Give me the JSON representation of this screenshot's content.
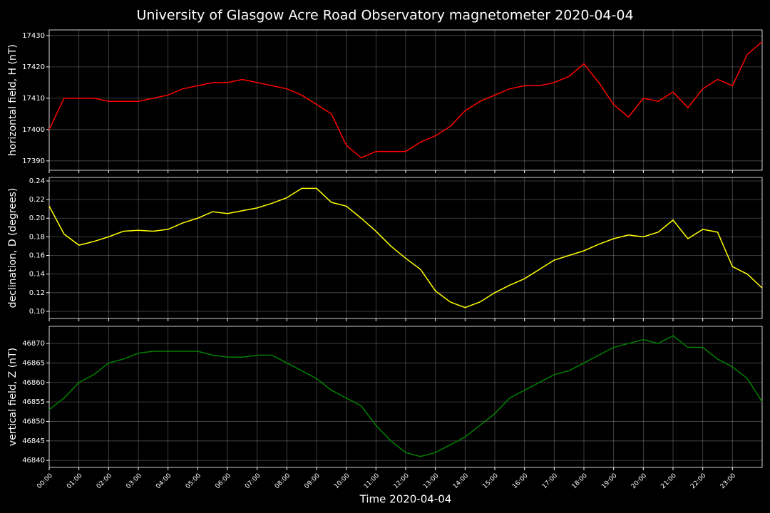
{
  "chart_data": [
    {
      "type": "line",
      "title": "University of Glasgow Acre Road Observatory magnetometer 2020-04-04",
      "ylabel": "horizontal field, H (nT)",
      "color": "#ff0000",
      "grid": true,
      "x": [
        0,
        0.5,
        1,
        1.5,
        2,
        2.5,
        3,
        3.5,
        4,
        4.5,
        5,
        5.5,
        6,
        6.5,
        7,
        7.5,
        8,
        8.5,
        9,
        9.5,
        10,
        10.5,
        11,
        11.5,
        12,
        12.5,
        13,
        13.5,
        14,
        14.5,
        15,
        15.5,
        16,
        16.5,
        17,
        17.5,
        18,
        18.5,
        19,
        19.5,
        20,
        20.5,
        21,
        21.5,
        22,
        22.5,
        23,
        23.5,
        24
      ],
      "values": [
        17400,
        17410,
        17410,
        17410,
        17409,
        17409,
        17409,
        17410,
        17411,
        17413,
        17414,
        17415,
        17415,
        17416,
        17415,
        17414,
        17413,
        17411,
        17408,
        17405,
        17395,
        17391,
        17393,
        17393,
        17393,
        17396,
        17398,
        17401,
        17406,
        17409,
        17411,
        17413,
        17414,
        17414,
        17415,
        17417,
        17421,
        17415,
        17408,
        17404,
        17410,
        17409,
        17412,
        17407,
        17413,
        17416,
        17414,
        17424,
        17428
      ],
      "xlim": [
        0,
        24
      ],
      "ylim": [
        17387,
        17431.8
      ],
      "yticks": [
        17390,
        17400,
        17410,
        17420,
        17430
      ]
    },
    {
      "type": "line",
      "ylabel": "declination, D (degrees)",
      "color": "#ffff00",
      "grid": true,
      "x": [
        0,
        0.5,
        1,
        1.5,
        2,
        2.5,
        3,
        3.5,
        4,
        4.5,
        5,
        5.5,
        6,
        6.5,
        7,
        7.5,
        8,
        8.5,
        9,
        9.5,
        10,
        10.5,
        11,
        11.5,
        12,
        12.5,
        13,
        13.5,
        14,
        14.5,
        15,
        15.5,
        16,
        16.5,
        17,
        17.5,
        18,
        18.5,
        19,
        19.5,
        20,
        20.5,
        21,
        21.5,
        22,
        22.5,
        23,
        23.5,
        24
      ],
      "values": [
        0.213,
        0.183,
        0.171,
        0.175,
        0.18,
        0.186,
        0.187,
        0.186,
        0.188,
        0.195,
        0.2,
        0.207,
        0.205,
        0.208,
        0.211,
        0.216,
        0.222,
        0.232,
        0.232,
        0.217,
        0.213,
        0.2,
        0.186,
        0.17,
        0.157,
        0.145,
        0.122,
        0.11,
        0.104,
        0.11,
        0.12,
        0.128,
        0.135,
        0.145,
        0.155,
        0.16,
        0.165,
        0.172,
        0.178,
        0.182,
        0.18,
        0.185,
        0.198,
        0.178,
        0.188,
        0.185,
        0.148,
        0.14,
        0.125
      ],
      "xlim": [
        0,
        24
      ],
      "ylim": [
        0.0923,
        0.2438
      ],
      "yticks": [
        {
          "value": 0.1,
          "label": "0.10"
        },
        {
          "value": 0.12,
          "label": "0.12"
        },
        {
          "value": 0.14,
          "label": "0.14"
        },
        {
          "value": 0.16,
          "label": "0.16"
        },
        {
          "value": 0.18,
          "label": "0.18"
        },
        {
          "value": 0.2,
          "label": "0.20"
        },
        {
          "value": 0.22,
          "label": "0.22"
        },
        {
          "value": 0.24,
          "label": "0.24"
        }
      ]
    },
    {
      "type": "line",
      "ylabel": "vertical field, Z (nT)",
      "xlabel": "Time 2020-04-04",
      "color": "#008000",
      "grid": true,
      "x": [
        0,
        0.5,
        1,
        1.5,
        2,
        2.5,
        3,
        3.5,
        4,
        4.5,
        5,
        5.5,
        6,
        6.5,
        7,
        7.5,
        8,
        8.5,
        9,
        9.5,
        10,
        10.5,
        11,
        11.5,
        12,
        12.5,
        13,
        13.5,
        14,
        14.5,
        15,
        15.5,
        16,
        16.5,
        17,
        17.5,
        18,
        18.5,
        19,
        19.5,
        20,
        20.5,
        21,
        21.5,
        22,
        22.5,
        23,
        23.5,
        24
      ],
      "values": [
        46853,
        46856,
        46860,
        46862,
        46865,
        46866,
        46867.5,
        46868,
        46868,
        46868,
        46868,
        46867,
        46866.5,
        46866.5,
        46867,
        46867,
        46865,
        46863,
        46861,
        46858,
        46856,
        46854,
        46849,
        46845,
        46842,
        46841,
        46842,
        46844,
        46846,
        46849,
        46852,
        46856,
        46858,
        46860,
        46862,
        46863,
        46865,
        46867,
        46869,
        46870,
        46871,
        46870,
        46872,
        46869,
        46869,
        46866,
        46864,
        46861,
        46855
      ],
      "xlim": [
        0,
        24
      ],
      "ylim": [
        46838.2,
        46874.4
      ],
      "yticks": [
        46840,
        46845,
        46850,
        46855,
        46860,
        46865,
        46870
      ],
      "xticks": [
        {
          "value": 0,
          "label": "00:00"
        },
        {
          "value": 1,
          "label": "01:00"
        },
        {
          "value": 2,
          "label": "02:00"
        },
        {
          "value": 3,
          "label": "03:00"
        },
        {
          "value": 4,
          "label": "04:00"
        },
        {
          "value": 5,
          "label": "05:00"
        },
        {
          "value": 6,
          "label": "06:00"
        },
        {
          "value": 7,
          "label": "07:00"
        },
        {
          "value": 8,
          "label": "08:00"
        },
        {
          "value": 9,
          "label": "09:00"
        },
        {
          "value": 10,
          "label": "10:00"
        },
        {
          "value": 11,
          "label": "11:00"
        },
        {
          "value": 12,
          "label": "12:00"
        },
        {
          "value": 13,
          "label": "13:00"
        },
        {
          "value": 14,
          "label": "14:00"
        },
        {
          "value": 15,
          "label": "15:00"
        },
        {
          "value": 16,
          "label": "16:00"
        },
        {
          "value": 17,
          "label": "17:00"
        },
        {
          "value": 18,
          "label": "18:00"
        },
        {
          "value": 19,
          "label": "19:00"
        },
        {
          "value": 20,
          "label": "20:00"
        },
        {
          "value": 21,
          "label": "21:00"
        },
        {
          "value": 22,
          "label": "22:00"
        },
        {
          "value": 23,
          "label": "23:00"
        }
      ]
    }
  ]
}
